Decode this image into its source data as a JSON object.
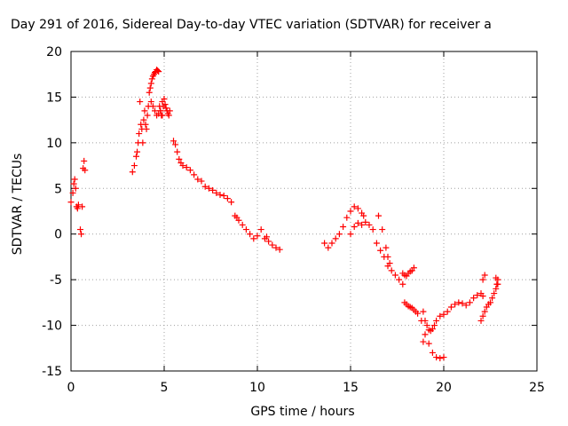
{
  "chart_data": {
    "type": "scatter",
    "title": "Day 291 of 2016, Sidereal Day-to-day VTEC variation (SDTVAR) for receiver a",
    "xlabel": "GPS time / hours",
    "ylabel": "SDTVAR / TECUs",
    "xlim": [
      0,
      25
    ],
    "ylim": [
      -15,
      20
    ],
    "xticks": [
      "0",
      "5",
      "10",
      "15",
      "20",
      "25"
    ],
    "yticks": [
      "-15",
      "-10",
      "-5",
      "0",
      "5",
      "10",
      "15",
      "20"
    ],
    "grid": true,
    "marker": "+",
    "color": "#ff0000",
    "series": [
      {
        "x": [
          0.0,
          0.1,
          0.15,
          0.2,
          0.25,
          0.3,
          0.35,
          0.4,
          0.5,
          0.55,
          0.6,
          0.65,
          0.7,
          0.75,
          3.3,
          3.4,
          3.5,
          3.55,
          3.6,
          3.65,
          3.7,
          3.75,
          3.8,
          3.85,
          3.9,
          3.95,
          4.0,
          4.05,
          4.1,
          4.15,
          4.2,
          4.25,
          4.3,
          4.35,
          4.4,
          4.45,
          4.5,
          4.55,
          4.6,
          4.65,
          4.7,
          4.75,
          4.8,
          4.85,
          4.9,
          4.95,
          5.0,
          5.05,
          5.1,
          5.15,
          5.2,
          5.25,
          5.3,
          4.3,
          4.4,
          4.5,
          4.6,
          4.7,
          4.8,
          4.9,
          5.5,
          5.6,
          5.7,
          5.8,
          5.9,
          6.0,
          6.2,
          6.4,
          6.6,
          6.8,
          7.0,
          7.2,
          7.4,
          7.6,
          7.8,
          8.0,
          8.2,
          8.4,
          8.6,
          8.8,
          8.9,
          9.0,
          9.2,
          9.4,
          9.6,
          9.8,
          10.0,
          10.2,
          10.4,
          10.5,
          10.6,
          10.8,
          11.0,
          11.2,
          13.6,
          13.8,
          14.0,
          14.2,
          14.4,
          14.6,
          14.8,
          15.0,
          15.2,
          15.4,
          15.6,
          15.7,
          15.0,
          15.2,
          15.4,
          15.6,
          15.8,
          16.0,
          16.2,
          16.4,
          16.6,
          16.8,
          17.0,
          17.2,
          17.4,
          17.6,
          17.8,
          16.5,
          16.7,
          16.9,
          17.0,
          17.1,
          17.8,
          17.9,
          18.0,
          18.1,
          18.2,
          18.3,
          18.4,
          17.9,
          18.0,
          18.1,
          18.2,
          18.3,
          18.4,
          18.5,
          18.6,
          18.8,
          18.9,
          19.0,
          19.2,
          19.4,
          19.6,
          19.8,
          20.0,
          18.9,
          19.0,
          19.1,
          19.2,
          19.3,
          19.4,
          19.5,
          19.6,
          19.8,
          20.0,
          20.2,
          20.4,
          20.6,
          20.8,
          21.0,
          21.2,
          21.4,
          21.6,
          21.8,
          22.0,
          22.1,
          22.0,
          22.1,
          22.2,
          22.3,
          22.4,
          22.5,
          22.6,
          22.7,
          22.8,
          22.85,
          22.9,
          22.1,
          22.2,
          22.8,
          22.9
        ],
        "y": [
          3.5,
          4.5,
          5.5,
          6.0,
          5.0,
          3.0,
          2.8,
          3.2,
          0.5,
          0.0,
          3.0,
          7.2,
          8.0,
          7.0,
          6.8,
          7.5,
          8.5,
          9.0,
          10.0,
          11.0,
          14.5,
          12.0,
          11.5,
          10.0,
          12.5,
          13.5,
          12.0,
          11.5,
          13.0,
          14.0,
          15.5,
          16.0,
          16.5,
          17.0,
          17.3,
          17.5,
          17.7,
          17.8,
          18.0,
          17.9,
          17.8,
          14.0,
          13.5,
          13.0,
          14.5,
          14.0,
          14.8,
          14.2,
          13.8,
          13.5,
          13.2,
          13.0,
          13.5,
          14.5,
          14.0,
          13.5,
          13.0,
          13.2,
          13.5,
          13.0,
          10.2,
          9.8,
          9.0,
          8.2,
          7.8,
          7.5,
          7.3,
          7.0,
          6.5,
          6.0,
          5.8,
          5.2,
          5.0,
          4.8,
          4.5,
          4.3,
          4.2,
          3.9,
          3.5,
          2.0,
          1.8,
          1.5,
          1.0,
          0.5,
          0.0,
          -0.5,
          -0.2,
          0.5,
          -0.5,
          -0.3,
          -0.8,
          -1.2,
          -1.5,
          -1.7,
          -1.0,
          -1.5,
          -1.0,
          -0.5,
          0.0,
          0.8,
          1.8,
          2.5,
          3.0,
          2.8,
          2.3,
          2.0,
          0.0,
          0.8,
          1.2,
          1.0,
          1.3,
          1.0,
          0.5,
          -1.0,
          -1.8,
          -2.5,
          -3.5,
          -4.0,
          -4.5,
          -5.0,
          -5.5,
          2.0,
          0.5,
          -1.5,
          -2.5,
          -3.2,
          -4.3,
          -4.5,
          -4.6,
          -4.3,
          -4.1,
          -4.0,
          -3.7,
          -7.5,
          -7.7,
          -7.9,
          -8.0,
          -8.1,
          -8.3,
          -8.5,
          -8.7,
          -9.5,
          -11.8,
          -11.0,
          -12.0,
          -13.0,
          -13.5,
          -13.6,
          -13.5,
          -8.5,
          -9.5,
          -10.0,
          -10.5,
          -10.6,
          -10.4,
          -10.0,
          -9.5,
          -9.0,
          -8.8,
          -8.5,
          -8.0,
          -7.7,
          -7.5,
          -7.6,
          -7.8,
          -7.5,
          -7.0,
          -6.7,
          -6.5,
          -6.8,
          -9.5,
          -9.0,
          -8.5,
          -8.0,
          -7.7,
          -7.5,
          -7.0,
          -6.5,
          -6.0,
          -5.5,
          -5.0,
          -5.0,
          -4.5,
          -4.8,
          -5.5
        ]
      }
    ]
  }
}
